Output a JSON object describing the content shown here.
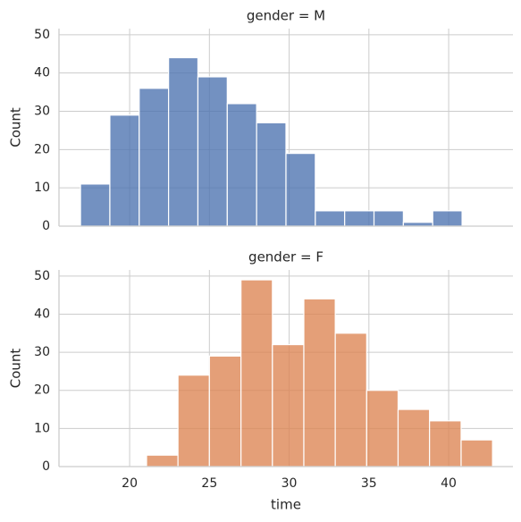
{
  "chart_data": [
    {
      "type": "histogram",
      "title": "gender = M",
      "ylabel": "Count",
      "color": "#4c72b0",
      "bins": [
        16.92,
        18.76,
        20.6,
        22.44,
        24.28,
        26.12,
        27.96,
        29.8,
        31.64,
        33.48,
        35.32,
        37.16,
        39.0,
        40.84
      ],
      "values": [
        11,
        29,
        36,
        44,
        39,
        32,
        27,
        19,
        4,
        4,
        4,
        1,
        4
      ],
      "xlim": [
        15.57,
        44.03
      ],
      "ylim": [
        0,
        51.6
      ],
      "yticks": [
        0,
        10,
        20,
        30,
        40,
        50
      ],
      "grid": true
    },
    {
      "type": "histogram",
      "title": "gender = F",
      "ylabel": "Count",
      "xlabel": "time",
      "color": "#dd8452",
      "bins": [
        21.06,
        23.03,
        25.0,
        26.98,
        28.95,
        30.92,
        32.89,
        34.86,
        36.83,
        38.8,
        40.78,
        42.75
      ],
      "values": [
        3,
        24,
        29,
        49,
        32,
        44,
        35,
        20,
        15,
        12,
        7
      ],
      "xlim": [
        15.57,
        44.03
      ],
      "ylim": [
        0,
        51.6
      ],
      "xticks": [
        20,
        25,
        30,
        35,
        40
      ],
      "yticks": [
        0,
        10,
        20,
        30,
        40,
        50
      ],
      "grid": true
    }
  ]
}
